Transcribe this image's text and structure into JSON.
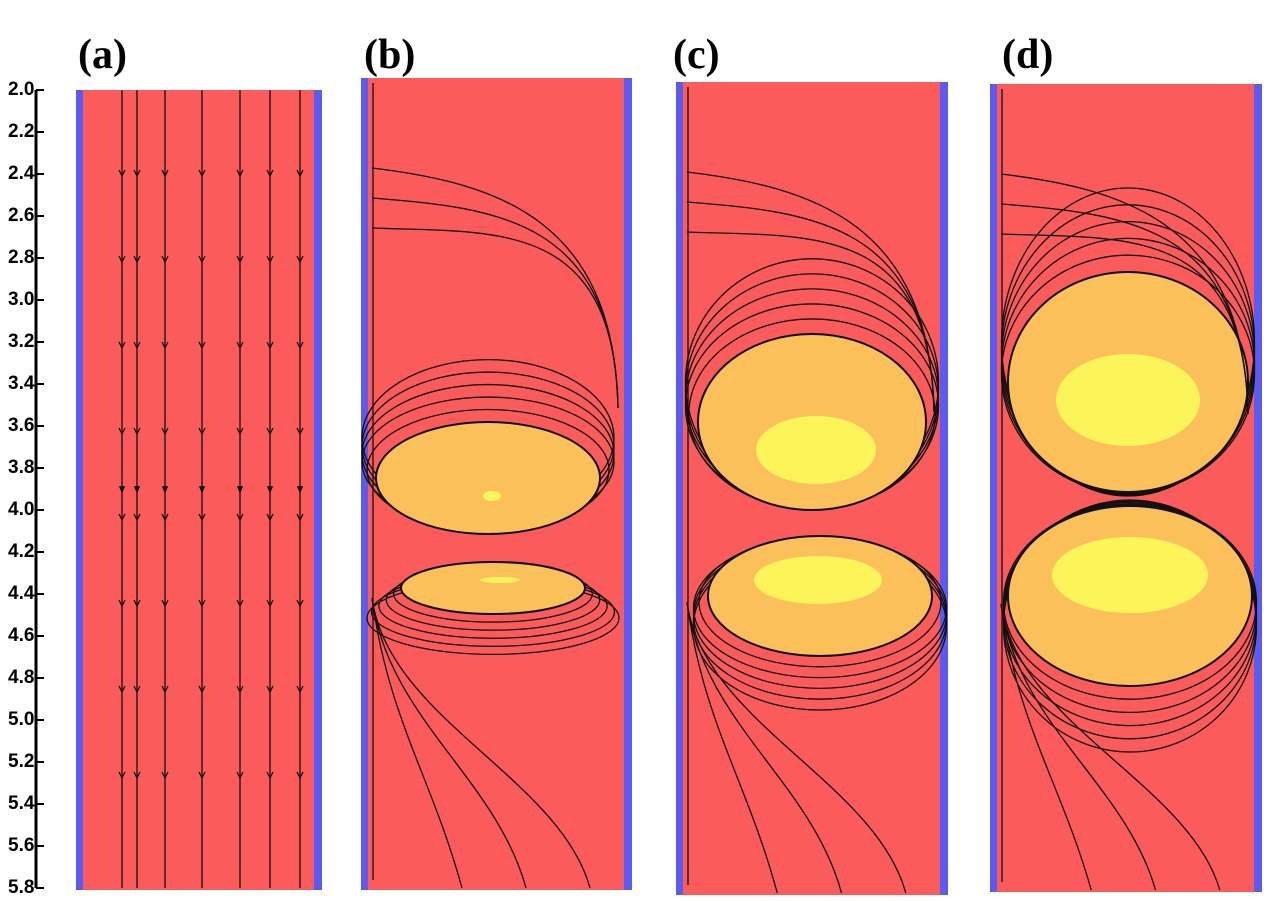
{
  "panels": [
    {
      "label": "(a)"
    },
    {
      "label": "(b)"
    },
    {
      "label": "(c)"
    },
    {
      "label": "(d)"
    }
  ],
  "axis": {
    "ylim": [
      2.0,
      5.8
    ],
    "yticks": [
      {
        "value": 2.0,
        "label": "2.0"
      },
      2.2,
      2.4,
      2.6,
      2.8,
      {
        "value": 3.0,
        "label": "3.0"
      },
      3.2,
      3.4,
      3.6,
      3.8,
      {
        "value": 4.0,
        "label": "4.0"
      },
      4.2,
      4.4,
      4.6,
      4.8,
      {
        "value": 5.0,
        "label": "5.0"
      },
      5.2,
      5.4,
      5.6,
      5.8
    ]
  }
}
